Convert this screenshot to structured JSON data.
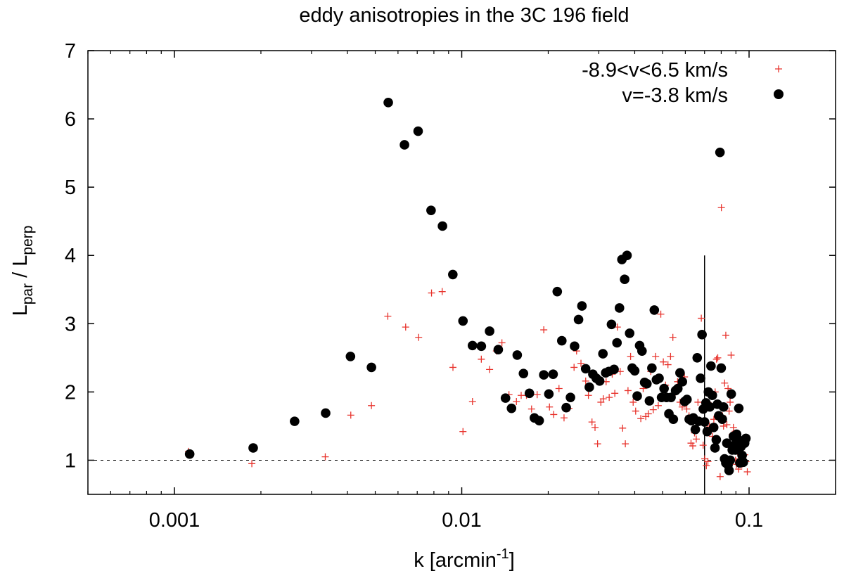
{
  "chart_data": {
    "type": "scatter",
    "title": "eddy anisotropies in the 3C 196 field",
    "xlabel": {
      "base": "k [arcmin",
      "sup": "-1",
      "end": "]"
    },
    "ylabel": {
      "prefix": "L",
      "sub1": "par",
      "mid": " / L",
      "sub2": "perp"
    },
    "xscale": "log",
    "xlim": [
      0.0005,
      0.2
    ],
    "ylim": [
      0.5,
      7
    ],
    "xticks": [
      0.001,
      0.01,
      0.1
    ],
    "xtick_labels": [
      "0.001",
      "0.01",
      "0.1"
    ],
    "yticks": [
      1,
      2,
      3,
      4,
      5,
      6,
      7
    ],
    "ytick_labels": [
      "1",
      "2",
      "3",
      "4",
      "5",
      "6",
      "7"
    ],
    "grid": false,
    "legend_position": "top-right",
    "reference_lines": [
      {
        "kind": "horizontal",
        "y": 1,
        "style": "dashed"
      },
      {
        "kind": "vertical",
        "x": 0.07,
        "y_from": 0.5,
        "y_to": 4,
        "style": "solid"
      }
    ],
    "series": [
      {
        "name": "-8.9<v<6.5 km/s",
        "marker": "plus",
        "color": "#e8332c",
        "points": [
          [
            0.00112,
            1.13
          ],
          [
            0.00186,
            0.95
          ],
          [
            0.00335,
            1.05
          ],
          [
            0.00411,
            1.66
          ],
          [
            0.00485,
            1.8
          ],
          [
            0.00553,
            3.11
          ],
          [
            0.00638,
            2.95
          ],
          [
            0.00708,
            2.8
          ],
          [
            0.00785,
            3.45
          ],
          [
            0.00855,
            3.47
          ],
          [
            0.00932,
            2.36
          ],
          [
            0.0101,
            1.42
          ],
          [
            0.0109,
            1.86
          ],
          [
            0.0117,
            2.48
          ],
          [
            0.0125,
            2.33
          ],
          [
            0.0132,
            2.6
          ],
          [
            0.0138,
            2.72
          ],
          [
            0.0146,
            1.96
          ],
          [
            0.0155,
            1.86
          ],
          [
            0.0161,
            1.95
          ],
          [
            0.0168,
            1.95
          ],
          [
            0.0175,
            1.75
          ],
          [
            0.0183,
            1.96
          ],
          [
            0.0193,
            2.91
          ],
          [
            0.0202,
            1.78
          ],
          [
            0.0209,
            1.67
          ],
          [
            0.0218,
            2.05
          ],
          [
            0.0227,
            1.62
          ],
          [
            0.0236,
            1.76
          ],
          [
            0.0246,
            2.36
          ],
          [
            0.0251,
            2.6
          ],
          [
            0.026,
            2.42
          ],
          [
            0.027,
            2.16
          ],
          [
            0.0276,
            1.95
          ],
          [
            0.0284,
            1.56
          ],
          [
            0.0291,
            1.48
          ],
          [
            0.0297,
            1.24
          ],
          [
            0.0305,
            1.85
          ],
          [
            0.0311,
            1.9
          ],
          [
            0.0318,
            2.15
          ],
          [
            0.0326,
            1.92
          ],
          [
            0.0334,
            2.26
          ],
          [
            0.0341,
            1.98
          ],
          [
            0.0348,
            2.95
          ],
          [
            0.0356,
            2.3
          ],
          [
            0.0363,
            1.47
          ],
          [
            0.0371,
            1.24
          ],
          [
            0.0379,
            2.02
          ],
          [
            0.0387,
            2.52
          ],
          [
            0.0395,
            1.85
          ],
          [
            0.0403,
            1.72
          ],
          [
            0.0411,
            1.92
          ],
          [
            0.042,
            1.61
          ],
          [
            0.0428,
            2.05
          ],
          [
            0.0437,
            1.64
          ],
          [
            0.0446,
            1.68
          ],
          [
            0.0455,
            2.3
          ],
          [
            0.0464,
            1.74
          ],
          [
            0.0473,
            2.52
          ],
          [
            0.0483,
            1.8
          ],
          [
            0.0493,
            3.14
          ],
          [
            0.0503,
            2.44
          ],
          [
            0.0512,
            2.1
          ],
          [
            0.0522,
            2.4
          ],
          [
            0.0533,
            2.52
          ],
          [
            0.0543,
            2.8
          ],
          [
            0.0553,
            1.98
          ],
          [
            0.0564,
            2.15
          ],
          [
            0.0575,
            1.85
          ],
          [
            0.0585,
            1.78
          ],
          [
            0.0596,
            2.22
          ],
          [
            0.0607,
            1.75
          ],
          [
            0.0618,
            1.65
          ],
          [
            0.0628,
            1.25
          ],
          [
            0.0637,
            1.21
          ],
          [
            0.0646,
            1.4
          ],
          [
            0.0655,
            1.31
          ],
          [
            0.0664,
            1.85
          ],
          [
            0.0673,
            1.58
          ],
          [
            0.0682,
            3.08
          ],
          [
            0.0692,
            1.22
          ],
          [
            0.0701,
            1.02
          ],
          [
            0.071,
            0.92
          ],
          [
            0.0719,
            0.98
          ],
          [
            0.0728,
            1.5
          ],
          [
            0.0737,
            1.8
          ],
          [
            0.0745,
            1.35
          ],
          [
            0.0754,
            1.6
          ],
          [
            0.0762,
            2.0
          ],
          [
            0.077,
            2.48
          ],
          [
            0.0778,
            2.5
          ],
          [
            0.0786,
            1.82
          ],
          [
            0.0793,
            0.76
          ],
          [
            0.0801,
            4.7
          ],
          [
            0.0808,
            1.65
          ],
          [
            0.0815,
            1.5
          ],
          [
            0.0822,
            2.13
          ],
          [
            0.083,
            2.83
          ],
          [
            0.0837,
            1.52
          ],
          [
            0.0845,
            2.05
          ],
          [
            0.0852,
            1.72
          ],
          [
            0.0859,
            1.85
          ],
          [
            0.0866,
            2.54
          ],
          [
            0.0874,
            1.38
          ],
          [
            0.0882,
            1.48
          ],
          [
            0.0889,
            1.2
          ],
          [
            0.0897,
            1.0
          ],
          [
            0.0904,
            0.94
          ],
          [
            0.0912,
            1.12
          ],
          [
            0.092,
            0.87
          ],
          [
            0.0928,
            1.02
          ],
          [
            0.0937,
            1.28
          ],
          [
            0.0945,
            0.94
          ],
          [
            0.0955,
            1.22
          ],
          [
            0.0965,
            1.08
          ],
          [
            0.0975,
            0.98
          ],
          [
            0.0986,
            0.83
          ]
        ]
      },
      {
        "name": "v=-3.8 km/s",
        "marker": "circle",
        "color": "#000000",
        "points": [
          [
            0.00113,
            1.09
          ],
          [
            0.00188,
            1.18
          ],
          [
            0.00262,
            1.57
          ],
          [
            0.00336,
            1.69
          ],
          [
            0.0041,
            2.52
          ],
          [
            0.00485,
            2.36
          ],
          [
            0.00555,
            6.24
          ],
          [
            0.00632,
            5.62
          ],
          [
            0.00705,
            5.82
          ],
          [
            0.00782,
            4.66
          ],
          [
            0.00857,
            4.43
          ],
          [
            0.00931,
            3.72
          ],
          [
            0.0101,
            3.04
          ],
          [
            0.0109,
            2.68
          ],
          [
            0.0117,
            2.67
          ],
          [
            0.0125,
            2.89
          ],
          [
            0.0134,
            2.62
          ],
          [
            0.0142,
            1.91
          ],
          [
            0.0149,
            1.76
          ],
          [
            0.0156,
            2.54
          ],
          [
            0.0164,
            2.27
          ],
          [
            0.0172,
            1.98
          ],
          [
            0.0179,
            1.62
          ],
          [
            0.0186,
            1.58
          ],
          [
            0.0193,
            2.25
          ],
          [
            0.0201,
            1.97
          ],
          [
            0.0208,
            2.26
          ],
          [
            0.0215,
            3.47
          ],
          [
            0.0223,
            2.75
          ],
          [
            0.0231,
            1.77
          ],
          [
            0.0239,
            1.92
          ],
          [
            0.0247,
            2.67
          ],
          [
            0.0255,
            3.06
          ],
          [
            0.0262,
            3.26
          ],
          [
            0.027,
            2.34
          ],
          [
            0.0278,
            2.07
          ],
          [
            0.0286,
            2.26
          ],
          [
            0.0294,
            2.2
          ],
          [
            0.0302,
            2.16
          ],
          [
            0.031,
            2.56
          ],
          [
            0.0317,
            2.28
          ],
          [
            0.0325,
            2.3
          ],
          [
            0.0332,
            2.99
          ],
          [
            0.0339,
            2.33
          ],
          [
            0.0347,
            2.72
          ],
          [
            0.0354,
            3.23
          ],
          [
            0.0361,
            3.94
          ],
          [
            0.0369,
            3.65
          ],
          [
            0.0376,
            4.0
          ],
          [
            0.0384,
            2.86
          ],
          [
            0.0392,
            2.35
          ],
          [
            0.04,
            2.31
          ],
          [
            0.0408,
            1.94
          ],
          [
            0.0416,
            2.68
          ],
          [
            0.0424,
            2.6
          ],
          [
            0.0433,
            2.14
          ],
          [
            0.0441,
            2.12
          ],
          [
            0.045,
            1.87
          ],
          [
            0.0459,
            2.35
          ],
          [
            0.0468,
            3.2
          ],
          [
            0.0476,
            2.18
          ],
          [
            0.0486,
            2.2
          ],
          [
            0.0496,
            1.92
          ],
          [
            0.0506,
            2.05
          ],
          [
            0.0516,
            1.92
          ],
          [
            0.0526,
            1.68
          ],
          [
            0.0535,
            1.92
          ],
          [
            0.0545,
            1.6
          ],
          [
            0.0555,
            2.02
          ],
          [
            0.0565,
            2.05
          ],
          [
            0.0575,
            2.28
          ],
          [
            0.0586,
            2.15
          ],
          [
            0.0597,
            1.86
          ],
          [
            0.0608,
            1.89
          ],
          [
            0.0619,
            1.6
          ],
          [
            0.063,
            1.58
          ],
          [
            0.064,
            1.62
          ],
          [
            0.065,
            1.45
          ],
          [
            0.066,
            2.5
          ],
          [
            0.0668,
            1.57
          ],
          [
            0.0678,
            2.2
          ],
          [
            0.0686,
            2.84
          ],
          [
            0.0693,
            1.75
          ],
          [
            0.07,
            1.56
          ],
          [
            0.0708,
            1.84
          ],
          [
            0.0715,
            1.42
          ],
          [
            0.0722,
            2.0
          ],
          [
            0.073,
            1.78
          ],
          [
            0.0737,
            2.38
          ],
          [
            0.0745,
            1.95
          ],
          [
            0.0753,
            1.48
          ],
          [
            0.0761,
            1.18
          ],
          [
            0.0769,
            1.3
          ],
          [
            0.0776,
            1.82
          ],
          [
            0.0784,
            1.65
          ],
          [
            0.0792,
            5.51
          ],
          [
            0.08,
            2.35
          ],
          [
            0.0807,
            1.6
          ],
          [
            0.0815,
            1.78
          ],
          [
            0.0822,
            1.02
          ],
          [
            0.083,
            0.96
          ],
          [
            0.0837,
            1.25
          ],
          [
            0.0845,
            0.93
          ],
          [
            0.0852,
            0.85
          ],
          [
            0.086,
            1.0
          ],
          [
            0.0867,
            1.97
          ],
          [
            0.0874,
            1.15
          ],
          [
            0.0882,
            1.35
          ],
          [
            0.0889,
            1.22
          ],
          [
            0.0897,
            1.15
          ],
          [
            0.0905,
            1.38
          ],
          [
            0.0913,
            1.31
          ],
          [
            0.0921,
            1.76
          ],
          [
            0.0929,
            0.96
          ],
          [
            0.0938,
            1.2
          ],
          [
            0.0946,
            1.07
          ],
          [
            0.0955,
            0.97
          ],
          [
            0.0965,
            1.25
          ],
          [
            0.0975,
            1.32
          ]
        ]
      }
    ]
  }
}
